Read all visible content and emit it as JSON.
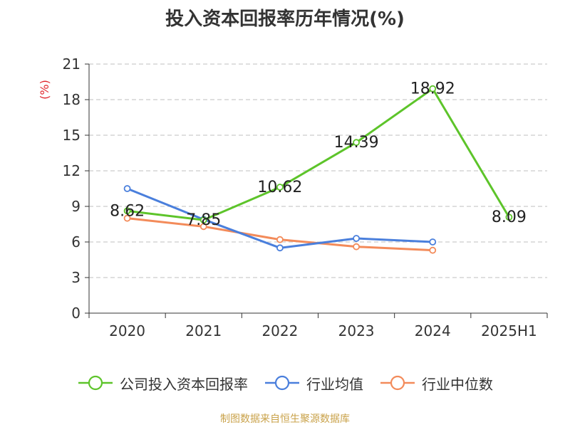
{
  "chart_data": {
    "type": "line",
    "title": "投入资本回报率历年情况(%)",
    "ylabel": "(%)",
    "xlabel": "",
    "categories": [
      "2020",
      "2021",
      "2022",
      "2023",
      "2024",
      "2025H1"
    ],
    "ylim": [
      0,
      21
    ],
    "yticks": [
      0,
      3,
      6,
      9,
      12,
      15,
      18,
      21
    ],
    "grid": "horizontal-dashed",
    "legend_position": "bottom",
    "series": [
      {
        "name": "公司投入资本回报率",
        "color": "#5dc42a",
        "values": [
          8.62,
          7.85,
          10.62,
          14.39,
          18.92,
          8.09
        ],
        "labels": [
          "8.62",
          "7.85",
          "10.62",
          "14.39",
          "18.92",
          "8.09"
        ]
      },
      {
        "name": "行业均值",
        "color": "#4a7fdc",
        "values": [
          10.5,
          7.9,
          5.5,
          6.3,
          6.0,
          null
        ]
      },
      {
        "name": "行业中位数",
        "color": "#f38b5a",
        "values": [
          8.0,
          7.3,
          6.2,
          5.6,
          5.3,
          null
        ]
      }
    ]
  },
  "footer": {
    "source": "制图数据来自恒生聚源数据库"
  },
  "colors": {
    "axis": "#333333",
    "grid": "#cccccc",
    "ylabel": "#e0282e",
    "source": "#c9a24a"
  }
}
